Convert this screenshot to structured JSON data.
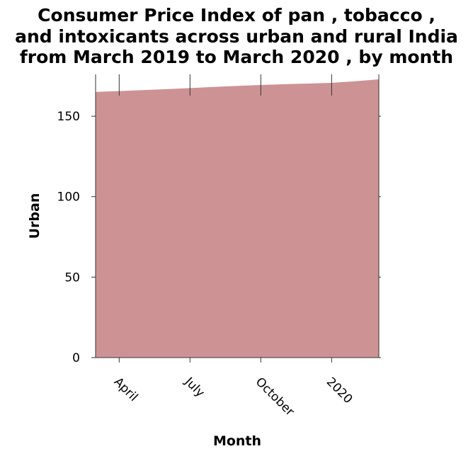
{
  "chart_data": {
    "type": "area",
    "title_lines": [
      "Consumer Price Index of pan , tobacco ,",
      "and intoxicants across urban and rural India",
      "from March 2019 to March 2020 , by month"
    ],
    "xlabel": "Month",
    "ylabel": "Urban",
    "x": [
      "2019-03",
      "2019-04",
      "2019-05",
      "2019-06",
      "2019-07",
      "2019-08",
      "2019-09",
      "2019-10",
      "2019-11",
      "2019-12",
      "2020-01",
      "2020-02",
      "2020-03"
    ],
    "series": [
      {
        "values": [
          165.1,
          165.6,
          166.2,
          166.8,
          167.5,
          168.2,
          168.8,
          169.4,
          169.9,
          170.3,
          170.7,
          171.7,
          172.9
        ],
        "color": "#cd9394"
      }
    ],
    "x_ticks": [
      {
        "x": "2019-04",
        "label": "April"
      },
      {
        "x": "2019-07",
        "label": "July"
      },
      {
        "x": "2019-10",
        "label": "October"
      },
      {
        "x": "2020-01",
        "label": "2020"
      }
    ],
    "y_ticks": [
      0,
      50,
      100,
      150
    ],
    "ylim": [
      0,
      176
    ],
    "grid": false,
    "legend": "none"
  }
}
